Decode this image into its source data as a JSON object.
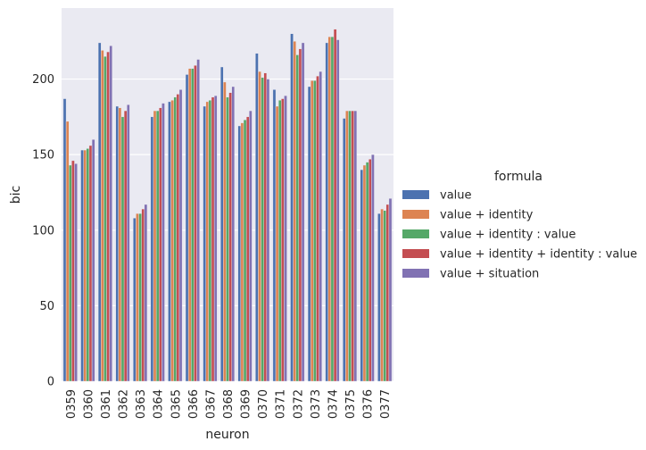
{
  "chart_data": {
    "type": "bar",
    "xlabel": "neuron",
    "ylabel": "bic",
    "ylim": [
      0,
      247
    ],
    "yticks": [
      0,
      50,
      100,
      150,
      200
    ],
    "grid": true,
    "legend_position": "right",
    "legend_title": "formula",
    "categories": [
      "0359",
      "0360",
      "0361",
      "0362",
      "0363",
      "0364",
      "0365",
      "0366",
      "0367",
      "0368",
      "0369",
      "0370",
      "0371",
      "0372",
      "0373",
      "0374",
      "0375",
      "0376",
      "0377"
    ],
    "series": [
      {
        "name": "value",
        "color": "#4c72b0",
        "values": [
          187,
          153,
          224,
          182,
          108,
          175,
          185,
          203,
          182,
          208,
          169,
          217,
          193,
          230,
          195,
          224,
          174,
          140,
          111
        ]
      },
      {
        "name": "value + identity",
        "color": "#dd8452",
        "values": [
          172,
          153,
          219,
          181,
          111,
          179,
          186,
          207,
          185,
          198,
          171,
          205,
          182,
          225,
          199,
          228,
          179,
          143,
          114
        ]
      },
      {
        "name": "value + identity : value",
        "color": "#55a868",
        "values": [
          143,
          154,
          215,
          175,
          111,
          179,
          188,
          207,
          186,
          188,
          173,
          201,
          186,
          216,
          199,
          228,
          179,
          145,
          113
        ]
      },
      {
        "name": "value + identity + identity : value",
        "color": "#c44e52",
        "values": [
          146,
          156,
          218,
          179,
          114,
          181,
          190,
          209,
          188,
          191,
          175,
          204,
          187,
          220,
          202,
          233,
          179,
          147,
          117
        ]
      },
      {
        "name": "value + situation",
        "color": "#8172b3",
        "values": [
          144,
          160,
          222,
          183,
          117,
          184,
          193,
          213,
          189,
          195,
          179,
          200,
          189,
          224,
          205,
          226,
          179,
          150,
          121
        ]
      }
    ]
  }
}
